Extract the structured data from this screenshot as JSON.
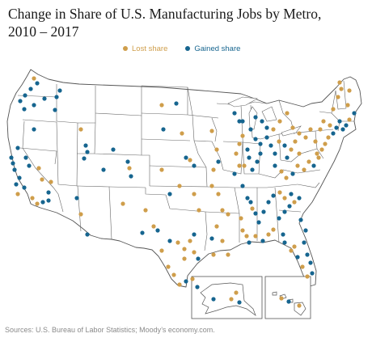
{
  "title_line1": "Change in Share of U.S. Manufacturing Jobs by Metro,",
  "title_line2": "2010 – 2017",
  "legend": {
    "lost": {
      "label": "Lost share",
      "color": "#CF9E4B"
    },
    "gained": {
      "label": "Gained share",
      "color": "#16658F"
    }
  },
  "source": "Sources: U.S. Bureau of Labor Statistics; Moody’s economy.com.",
  "map": {
    "land_color": "#ffffff",
    "border_color": "#555555",
    "insets": [
      "Alaska",
      "Hawaii"
    ]
  }
}
